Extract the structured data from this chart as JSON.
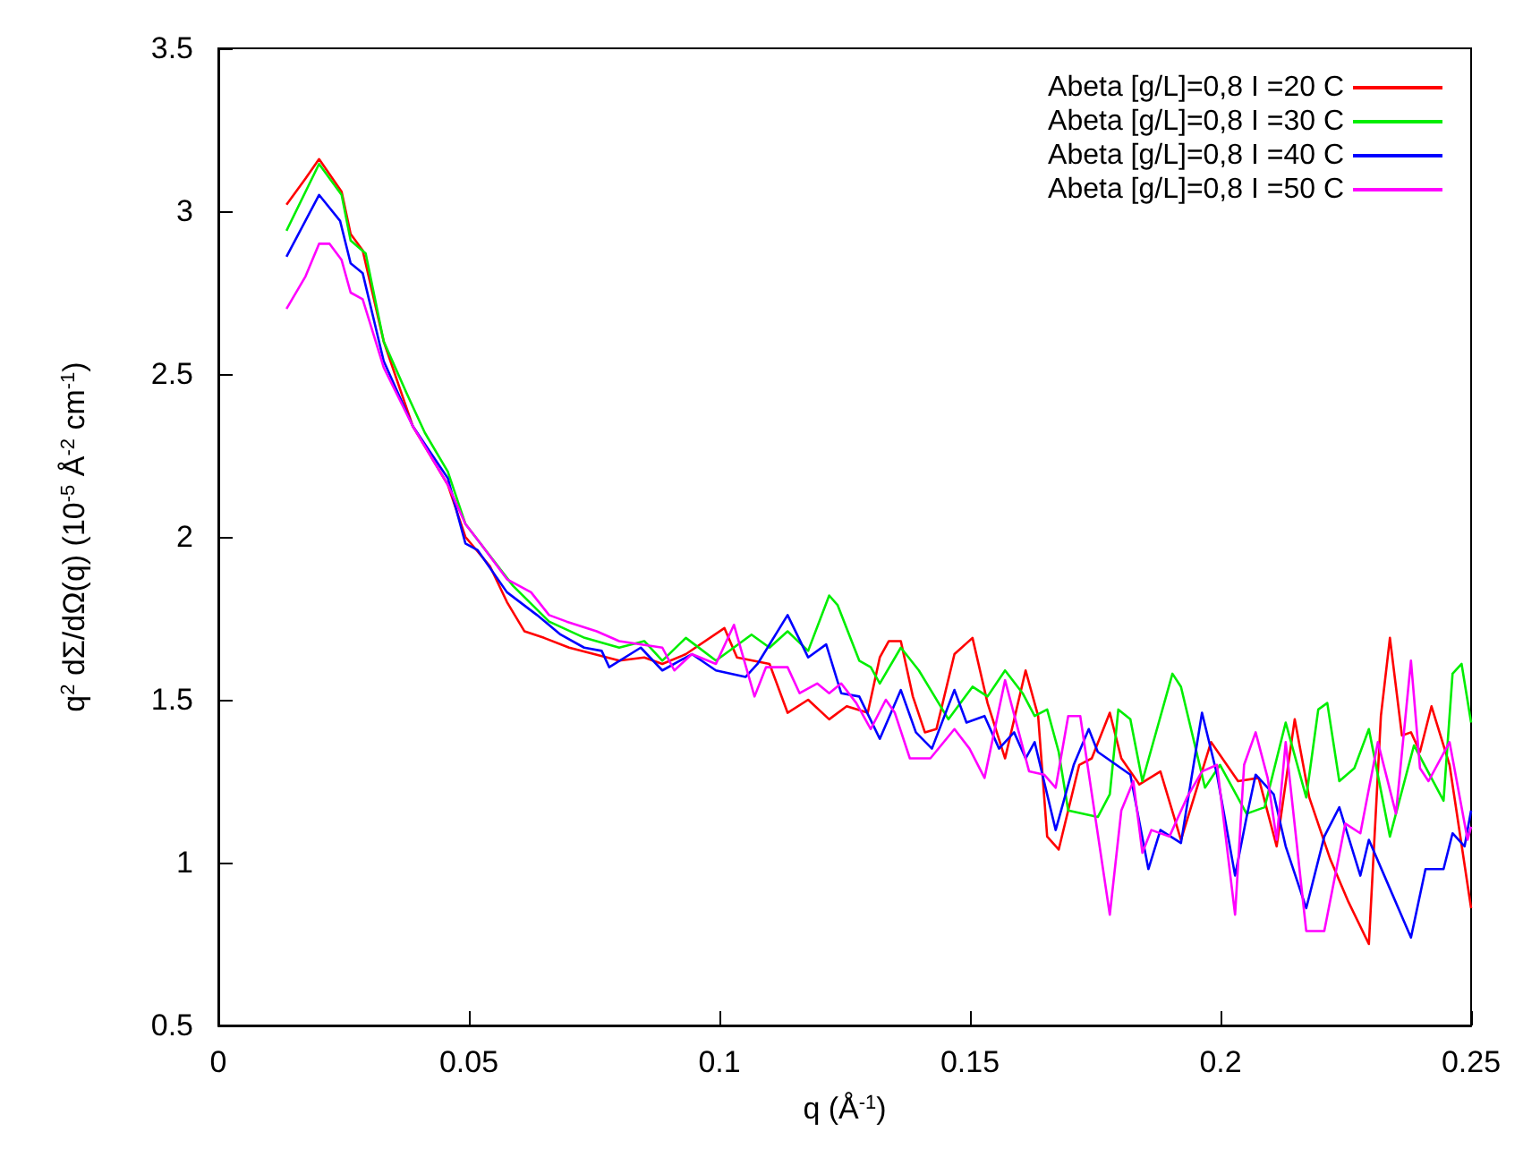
{
  "chart_data": {
    "type": "line",
    "xlabel": "q (Å$^{-1}$)",
    "ylabel": "q$^{2}$ dΣ/dΩ(q) (10$^{-5}$ Å$^{-2}$ cm$^{-1}$)",
    "xlim": [
      0,
      0.25
    ],
    "xticks": [
      0,
      0.05,
      0.1,
      0.15,
      0.2,
      0.25
    ],
    "ylim": [
      0.5,
      3.5
    ],
    "yticks": [
      0.5,
      1,
      1.5,
      2,
      2.5,
      3,
      3.5
    ],
    "grid": false,
    "legend": "top right",
    "marker": "none",
    "line_style": "solid",
    "series": [
      {
        "name": "Abeta [g/L]=0,8 I =20 C",
        "color": "#ff0000",
        "x": [
          0.0136,
          0.0174,
          0.0201,
          0.0246,
          0.0264,
          0.0288,
          0.033,
          0.0388,
          0.0458,
          0.0493,
          0.0542,
          0.0576,
          0.0611,
          0.065,
          0.07,
          0.075,
          0.08,
          0.085,
          0.0886,
          0.0933,
          0.101,
          0.1035,
          0.11,
          0.1136,
          0.1177,
          0.1219,
          0.1254,
          0.1296,
          0.132,
          0.1338,
          0.1362,
          0.1386,
          0.141,
          0.1433,
          0.1469,
          0.1505,
          0.1535,
          0.157,
          0.1611,
          0.1636,
          0.1654,
          0.1677,
          0.1718,
          0.1743,
          0.1779,
          0.1802,
          0.1838,
          0.188,
          0.1921,
          0.1981,
          0.2035,
          0.2076,
          0.2112,
          0.2148,
          0.2177,
          0.2219,
          0.2255,
          0.2296,
          0.232,
          0.2338,
          0.2362,
          0.238,
          0.2398,
          0.2421,
          0.2457,
          0.25
        ],
        "values": [
          3.02,
          3.1,
          3.16,
          3.06,
          2.93,
          2.88,
          2.6,
          2.34,
          2.16,
          2.0,
          1.91,
          1.8,
          1.71,
          1.69,
          1.66,
          1.64,
          1.62,
          1.63,
          1.61,
          1.64,
          1.72,
          1.63,
          1.61,
          1.46,
          1.5,
          1.44,
          1.48,
          1.46,
          1.63,
          1.68,
          1.68,
          1.51,
          1.4,
          1.41,
          1.64,
          1.69,
          1.49,
          1.32,
          1.59,
          1.45,
          1.08,
          1.04,
          1.3,
          1.32,
          1.46,
          1.32,
          1.24,
          1.28,
          1.07,
          1.37,
          1.25,
          1.26,
          1.05,
          1.44,
          1.2,
          1.01,
          0.88,
          0.75,
          1.45,
          1.69,
          1.39,
          1.4,
          1.34,
          1.48,
          1.3,
          0.86
        ]
      },
      {
        "name": "Abeta [g/L]=0,8 I =30 C",
        "color": "#00ee00",
        "x": [
          0.0136,
          0.0201,
          0.0246,
          0.0264,
          0.0294,
          0.033,
          0.0376,
          0.0412,
          0.0458,
          0.0493,
          0.0588,
          0.066,
          0.0731,
          0.08,
          0.085,
          0.0886,
          0.0933,
          0.0993,
          0.1064,
          0.11,
          0.1136,
          0.1177,
          0.1219,
          0.1236,
          0.1279,
          0.1302,
          0.132,
          0.1362,
          0.1398,
          0.1457,
          0.1505,
          0.1535,
          0.157,
          0.1605,
          0.1629,
          0.1654,
          0.1677,
          0.1696,
          0.1755,
          0.1779,
          0.1796,
          0.182,
          0.1844,
          0.1904,
          0.1921,
          0.1969,
          0.1999,
          0.2052,
          0.2088,
          0.213,
          0.2171,
          0.2195,
          0.2213,
          0.2237,
          0.2267,
          0.2296,
          0.2338,
          0.2386,
          0.2445,
          0.2463,
          0.2481,
          0.25
        ],
        "values": [
          2.94,
          3.145,
          3.05,
          2.91,
          2.87,
          2.6,
          2.44,
          2.32,
          2.2,
          2.04,
          1.85,
          1.74,
          1.69,
          1.66,
          1.68,
          1.62,
          1.69,
          1.62,
          1.7,
          1.66,
          1.71,
          1.65,
          1.82,
          1.79,
          1.62,
          1.6,
          1.55,
          1.66,
          1.59,
          1.44,
          1.54,
          1.51,
          1.59,
          1.52,
          1.45,
          1.47,
          1.34,
          1.16,
          1.14,
          1.21,
          1.47,
          1.44,
          1.25,
          1.58,
          1.54,
          1.23,
          1.3,
          1.15,
          1.17,
          1.43,
          1.2,
          1.47,
          1.49,
          1.25,
          1.29,
          1.41,
          1.08,
          1.36,
          1.19,
          1.58,
          1.61,
          1.43
        ]
      },
      {
        "name": "Abeta [g/L]=0,8 I =40 C",
        "color": "#0000ff",
        "x": [
          0.0136,
          0.0201,
          0.0243,
          0.0264,
          0.0288,
          0.033,
          0.0388,
          0.0458,
          0.0493,
          0.0517,
          0.0576,
          0.0636,
          0.0683,
          0.073,
          0.0765,
          0.078,
          0.0843,
          0.0886,
          0.0945,
          0.0993,
          0.1052,
          0.1076,
          0.1136,
          0.1177,
          0.1213,
          0.1243,
          0.1279,
          0.132,
          0.1362,
          0.1392,
          0.1424,
          0.1469,
          0.1493,
          0.1529,
          0.1558,
          0.1588,
          0.1611,
          0.1629,
          0.1671,
          0.1707,
          0.1737,
          0.1755,
          0.182,
          0.1856,
          0.188,
          0.1921,
          0.1963,
          0.1993,
          0.2029,
          0.2052,
          0.207,
          0.2106,
          0.213,
          0.2171,
          0.2207,
          0.2237,
          0.2279,
          0.2296,
          0.2338,
          0.238,
          0.2409,
          0.2445,
          0.2463,
          0.2487,
          0.25
        ],
        "values": [
          2.86,
          3.05,
          2.97,
          2.84,
          2.81,
          2.54,
          2.34,
          2.18,
          1.98,
          1.96,
          1.83,
          1.76,
          1.7,
          1.66,
          1.65,
          1.6,
          1.66,
          1.59,
          1.64,
          1.59,
          1.57,
          1.61,
          1.76,
          1.63,
          1.67,
          1.52,
          1.51,
          1.38,
          1.53,
          1.4,
          1.35,
          1.53,
          1.43,
          1.45,
          1.35,
          1.4,
          1.32,
          1.37,
          1.1,
          1.3,
          1.41,
          1.34,
          1.27,
          0.98,
          1.1,
          1.06,
          1.46,
          1.27,
          0.96,
          1.14,
          1.27,
          1.21,
          1.05,
          0.86,
          1.08,
          1.17,
          0.96,
          1.07,
          0.92,
          0.77,
          0.98,
          0.98,
          1.09,
          1.05,
          1.16
        ]
      },
      {
        "name": "Abeta [g/L]=0,8 I =50 C",
        "color": "#ff00ff",
        "x": [
          0.0136,
          0.0174,
          0.0201,
          0.0222,
          0.0246,
          0.0264,
          0.0288,
          0.033,
          0.0388,
          0.0458,
          0.0493,
          0.0523,
          0.0576,
          0.0624,
          0.066,
          0.0695,
          0.0755,
          0.08,
          0.0886,
          0.091,
          0.0945,
          0.0993,
          0.1029,
          0.107,
          0.1093,
          0.1136,
          0.116,
          0.1195,
          0.1219,
          0.1243,
          0.1273,
          0.1302,
          0.1332,
          0.135,
          0.138,
          0.1421,
          0.1469,
          0.1499,
          0.1529,
          0.157,
          0.1618,
          0.1648,
          0.1671,
          0.1696,
          0.172,
          0.1779,
          0.1802,
          0.1826,
          0.1844,
          0.1862,
          0.1898,
          0.1933,
          0.1963,
          0.1993,
          0.2029,
          0.2047,
          0.207,
          0.2094,
          0.2112,
          0.213,
          0.2171,
          0.2207,
          0.2249,
          0.2279,
          0.2314,
          0.235,
          0.238,
          0.2398,
          0.2415,
          0.2457,
          0.2493,
          0.25
        ],
        "values": [
          2.7,
          2.8,
          2.9,
          2.9,
          2.85,
          2.75,
          2.73,
          2.52,
          2.34,
          2.16,
          2.04,
          1.98,
          1.87,
          1.83,
          1.76,
          1.74,
          1.71,
          1.68,
          1.66,
          1.59,
          1.64,
          1.61,
          1.73,
          1.51,
          1.6,
          1.6,
          1.52,
          1.55,
          1.52,
          1.55,
          1.49,
          1.41,
          1.5,
          1.46,
          1.32,
          1.32,
          1.41,
          1.35,
          1.26,
          1.56,
          1.28,
          1.27,
          1.23,
          1.45,
          1.45,
          0.84,
          1.16,
          1.25,
          1.03,
          1.1,
          1.08,
          1.2,
          1.28,
          1.3,
          0.84,
          1.3,
          1.4,
          1.26,
          1.07,
          1.37,
          0.79,
          0.79,
          1.12,
          1.09,
          1.37,
          1.15,
          1.62,
          1.29,
          1.25,
          1.37,
          1.07,
          1.11
        ]
      }
    ]
  }
}
